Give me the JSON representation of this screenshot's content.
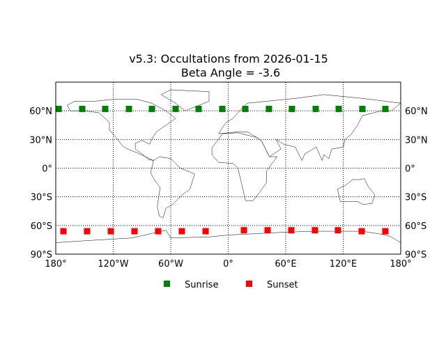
{
  "chart_data": {
    "type": "scatter",
    "title": "v5.3: Occultations from 2026-01-15",
    "subtitle": "Beta Angle = -3.6",
    "xlim": [
      -180,
      180
    ],
    "ylim": [
      -90,
      90
    ],
    "grid": true,
    "legend_placement": "bottom-center",
    "x_ticks": [
      -180,
      -120,
      -60,
      0,
      60,
      120,
      180
    ],
    "x_tick_labels": [
      "180°",
      "120°W",
      "60°W",
      "0°",
      "60°E",
      "120°E",
      "180°"
    ],
    "y_ticks": [
      60,
      30,
      0,
      -30,
      -60,
      -90
    ],
    "y_tick_labels": [
      "60°N",
      "30°N",
      "0°",
      "30°S",
      "60°S",
      "90°S"
    ],
    "series": [
      {
        "name": "Sunrise",
        "color": "#008000",
        "lon": [
          -177,
          -152.4,
          -128.4,
          -103.6,
          -79.6,
          -54.9,
          -30.9,
          -6.2,
          17.8,
          42.5,
          66.5,
          91.3,
          115.3,
          140,
          164
        ],
        "lat": [
          62,
          62,
          62,
          62,
          62,
          62,
          62,
          62,
          62,
          62,
          62,
          62,
          62,
          62,
          62
        ]
      },
      {
        "name": "Sunset",
        "color": "#ff0000",
        "lon": [
          -172,
          -147.3,
          -122.5,
          -97.8,
          -73.1,
          -48.4,
          -23.6,
          16.4,
          41.1,
          65.8,
          90.5,
          114.5,
          139.3,
          164
        ],
        "lat": [
          -66,
          -66,
          -66,
          -66,
          -66,
          -66,
          -66,
          -65,
          -65,
          -65,
          -65,
          -65,
          -66,
          -66
        ]
      }
    ]
  }
}
